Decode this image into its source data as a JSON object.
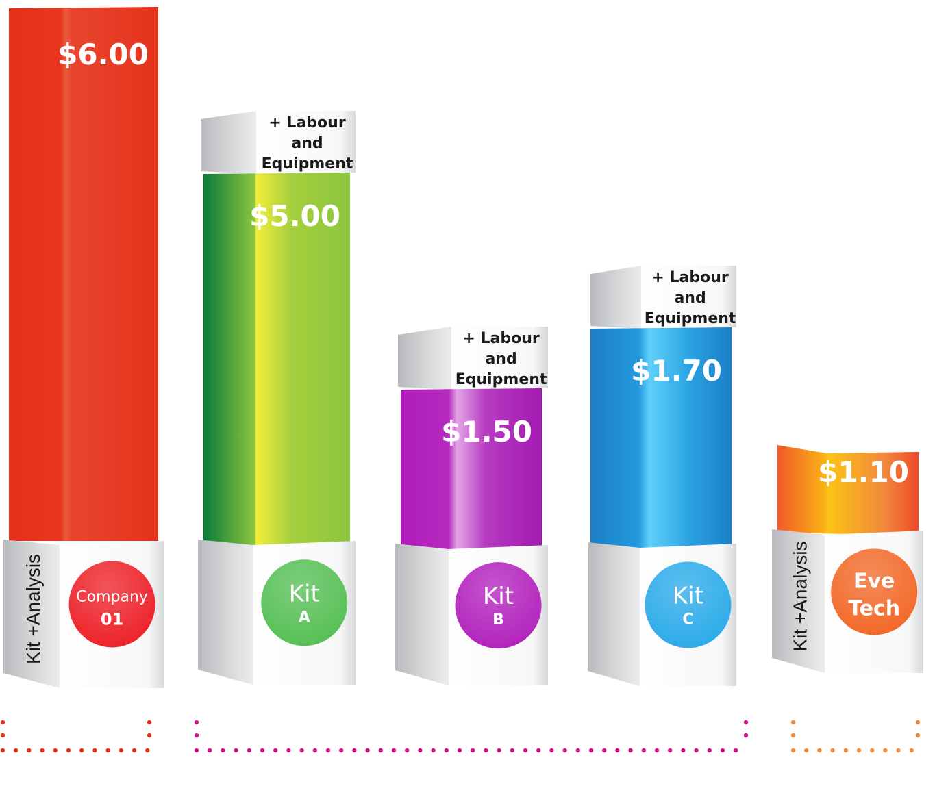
{
  "chart_data": {
    "type": "bar",
    "categories": [
      "Company 01",
      "Kit A",
      "Kit B",
      "Kit C",
      "Eve Tech"
    ],
    "values": [
      6.0,
      5.0,
      1.5,
      1.7,
      1.1
    ],
    "series": [
      {
        "values": [
          6.0,
          5.0,
          1.5,
          1.7,
          1.1
        ],
        "labels": [
          "$6.00",
          "$5.00",
          "$1.50",
          "$1.70",
          "$1.10"
        ]
      }
    ],
    "bars": [
      {
        "label_line1": "Company",
        "label_line2": "01",
        "value_text": "$6.00",
        "side_label": "Kit +Analysis",
        "extra": "",
        "color": "#e8301c",
        "circle": "#ed1c24"
      },
      {
        "label_line1": "Kit",
        "label_line2": "A",
        "value_text": "$5.00",
        "side_label": "",
        "extra": "+ Labour|and|Equipment",
        "color": "#8dc63f",
        "circle": "#52be50"
      },
      {
        "label_line1": "Kit",
        "label_line2": "B",
        "value_text": "$1.50",
        "side_label": "",
        "extra": "+ Labour|and|Equipment",
        "color": "#b01dbb",
        "circle": "#b01dbb"
      },
      {
        "label_line1": "Kit",
        "label_line2": "C",
        "value_text": "$1.70",
        "side_label": "",
        "extra": "+ Labour|and|Equipment",
        "color": "#1d8fd6",
        "circle": "#26a9e9"
      },
      {
        "label_line1": "Eve",
        "label_line2": "Tech",
        "value_text": "$1.10",
        "side_label": "Kit +Analysis",
        "extra": "",
        "color": "#f06a28",
        "circle": "#f26522"
      }
    ],
    "brackets": [
      {
        "color": "#e8301c",
        "from": 0,
        "to": 0
      },
      {
        "color": "#d4148c",
        "from": 1,
        "to": 3
      },
      {
        "color": "#f08a3c",
        "from": 4,
        "to": 4
      }
    ]
  }
}
